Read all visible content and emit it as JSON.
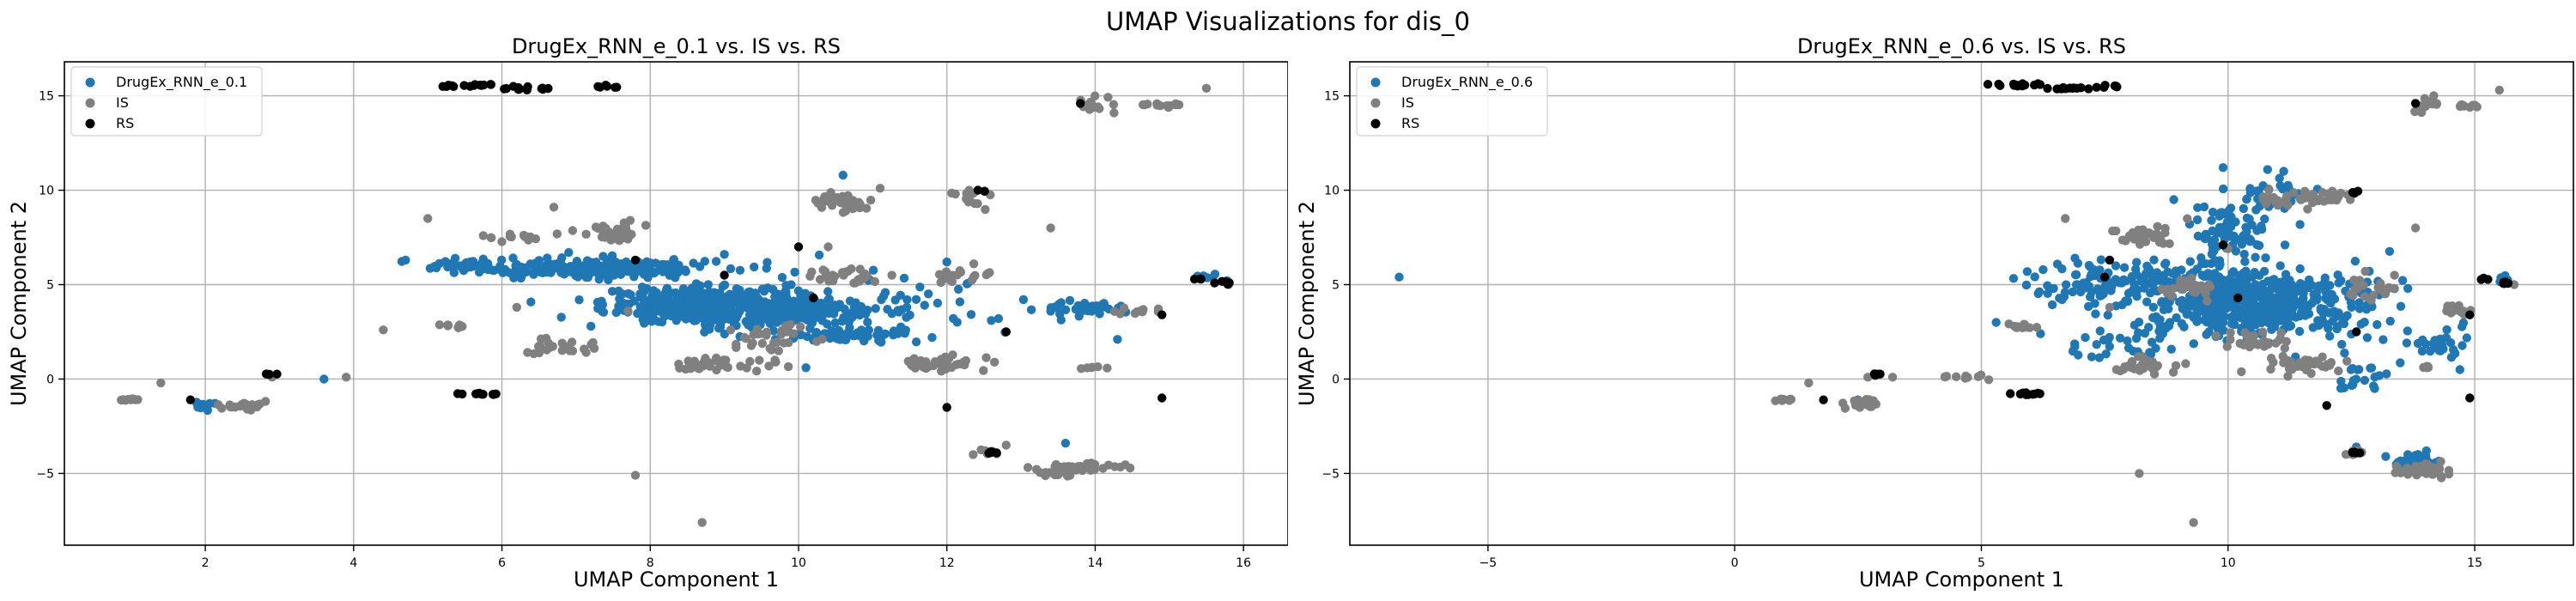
{
  "figure": {
    "suptitle": "UMAP Visualizations for dis_0"
  },
  "colors": {
    "generated": "#1f77b4",
    "IS": "#808080",
    "RS": "#000000",
    "grid": "#b0b0b0"
  },
  "chart_data": [
    {
      "type": "scatter",
      "title": "DrugEx_RNN_e_0.1 vs. IS vs. RS",
      "xlabel": "UMAP Component 1",
      "ylabel": "UMAP Component 2",
      "xlim": [
        0.1,
        16.6
      ],
      "ylim": [
        -8.8,
        16.8
      ],
      "xticks": [
        2,
        4,
        6,
        8,
        10,
        12,
        14,
        16
      ],
      "yticks": [
        -5,
        0,
        5,
        10,
        15
      ],
      "grid": true,
      "legend_position": "top-left",
      "series": [
        {
          "name": "DrugEx_RNN_e_0.1",
          "color": "#1f77b4",
          "clusters": [
            {
              "cx": 8.7,
              "cy": 3.9,
              "rx": 1.2,
              "ry": 0.9,
              "n": 380
            },
            {
              "cx": 7.2,
              "cy": 5.9,
              "rx": 1.6,
              "ry": 0.45,
              "n": 220
            },
            {
              "cx": 9.9,
              "cy": 3.6,
              "rx": 1.0,
              "ry": 0.8,
              "n": 180
            },
            {
              "cx": 10.6,
              "cy": 2.3,
              "rx": 0.8,
              "ry": 0.3,
              "n": 60
            },
            {
              "cx": 13.9,
              "cy": 3.7,
              "rx": 0.5,
              "ry": 0.35,
              "n": 40
            },
            {
              "cx": 11.5,
              "cy": 4.0,
              "rx": 1.4,
              "ry": 1.6,
              "n": 50
            },
            {
              "cx": 5.5,
              "cy": 6.0,
              "rx": 0.6,
              "ry": 0.3,
              "n": 25
            },
            {
              "cx": 2.0,
              "cy": -1.4,
              "rx": 0.15,
              "ry": 0.25,
              "n": 12
            },
            {
              "cx": 15.5,
              "cy": 5.4,
              "rx": 0.15,
              "ry": 0.2,
              "n": 6
            }
          ],
          "points": [
            {
              "x": 4.7,
              "y": 6.3
            },
            {
              "x": 10.6,
              "y": 10.8
            },
            {
              "x": 13.6,
              "y": -3.4
            },
            {
              "x": 12.0,
              "y": 6.2
            },
            {
              "x": 9.0,
              "y": 6.6
            },
            {
              "x": 11.8,
              "y": 2.2
            },
            {
              "x": 14.3,
              "y": 2.1
            },
            {
              "x": 12.6,
              "y": 3.1
            },
            {
              "x": 3.6,
              "y": 0.0
            },
            {
              "x": 10.1,
              "y": 0.6
            },
            {
              "x": 7.2,
              "y": 2.8
            },
            {
              "x": 6.9,
              "y": 6.7
            }
          ]
        },
        {
          "name": "IS",
          "color": "#808080",
          "clusters": [
            {
              "cx": 13.7,
              "cy": -4.8,
              "rx": 0.55,
              "ry": 0.3,
              "n": 45
            },
            {
              "cx": 14.0,
              "cy": 14.6,
              "rx": 0.25,
              "ry": 0.4,
              "n": 18
            },
            {
              "cx": 14.9,
              "cy": 14.5,
              "rx": 0.3,
              "ry": 0.1,
              "n": 12
            },
            {
              "cx": 10.6,
              "cy": 9.4,
              "rx": 0.5,
              "ry": 0.5,
              "n": 35
            },
            {
              "cx": 11.9,
              "cy": 0.8,
              "rx": 0.5,
              "ry": 0.3,
              "n": 40
            },
            {
              "cx": 2.5,
              "cy": -1.4,
              "rx": 0.3,
              "ry": 0.2,
              "n": 22
            },
            {
              "cx": 1.0,
              "cy": -1.1,
              "rx": 0.12,
              "ry": 0.06,
              "n": 10
            },
            {
              "cx": 8.9,
              "cy": 0.8,
              "rx": 0.6,
              "ry": 0.35,
              "n": 40
            },
            {
              "cx": 7.5,
              "cy": 7.8,
              "rx": 0.4,
              "ry": 0.5,
              "n": 30
            },
            {
              "cx": 12.3,
              "cy": 9.6,
              "rx": 0.25,
              "ry": 0.4,
              "n": 15
            },
            {
              "cx": 12.5,
              "cy": -3.9,
              "rx": 0.2,
              "ry": 0.15,
              "n": 10
            },
            {
              "cx": 10.5,
              "cy": 5.4,
              "rx": 0.6,
              "ry": 0.35,
              "n": 30
            },
            {
              "cx": 6.8,
              "cy": 1.6,
              "rx": 0.6,
              "ry": 0.5,
              "n": 25
            },
            {
              "cx": 12.2,
              "cy": 5.5,
              "rx": 0.4,
              "ry": 0.5,
              "n": 18
            },
            {
              "cx": 14.0,
              "cy": 0.6,
              "rx": 0.2,
              "ry": 0.1,
              "n": 6
            },
            {
              "cx": 6.2,
              "cy": 7.5,
              "rx": 0.4,
              "ry": 0.25,
              "n": 15
            },
            {
              "cx": 9.7,
              "cy": 2.2,
              "rx": 0.8,
              "ry": 0.6,
              "n": 30
            },
            {
              "cx": 14.6,
              "cy": 3.6,
              "rx": 0.3,
              "ry": 0.2,
              "n": 10
            },
            {
              "cx": 5.3,
              "cy": 2.8,
              "rx": 0.2,
              "ry": 0.15,
              "n": 8
            }
          ],
          "points": [
            {
              "x": 8.7,
              "y": -7.6
            },
            {
              "x": 7.8,
              "y": -5.1
            },
            {
              "x": 13.4,
              "y": 8.0
            },
            {
              "x": 15.8,
              "y": 5.0
            },
            {
              "x": 4.4,
              "y": 2.6
            },
            {
              "x": 3.9,
              "y": 0.1
            },
            {
              "x": 2.9,
              "y": 0.1
            },
            {
              "x": 1.4,
              "y": -0.2
            },
            {
              "x": 5.0,
              "y": 8.5
            },
            {
              "x": 11.1,
              "y": 10.1
            },
            {
              "x": 12.8,
              "y": -3.5
            },
            {
              "x": 10.4,
              "y": 7.0
            },
            {
              "x": 6.7,
              "y": 9.1
            },
            {
              "x": 15.5,
              "y": 15.4
            },
            {
              "x": 7.7,
              "y": 3.6
            },
            {
              "x": 6.2,
              "y": 3.8
            }
          ]
        },
        {
          "name": "RS",
          "color": "#000000",
          "clusters": [
            {
              "cx": 5.5,
              "cy": 15.55,
              "rx": 0.35,
              "ry": 0.08,
              "n": 14
            },
            {
              "cx": 6.4,
              "cy": 15.4,
              "rx": 0.35,
              "ry": 0.08,
              "n": 12
            },
            {
              "cx": 7.4,
              "cy": 15.5,
              "rx": 0.2,
              "ry": 0.08,
              "n": 6
            },
            {
              "cx": 5.6,
              "cy": -0.8,
              "rx": 0.35,
              "ry": 0.06,
              "n": 10
            },
            {
              "cx": 15.7,
              "cy": 5.1,
              "rx": 0.12,
              "ry": 0.1,
              "n": 6
            },
            {
              "cx": 12.6,
              "cy": -3.9,
              "rx": 0.1,
              "ry": 0.05,
              "n": 4
            },
            {
              "cx": 2.9,
              "cy": 0.25,
              "rx": 0.1,
              "ry": 0.06,
              "n": 4
            },
            {
              "cx": 12.5,
              "cy": 9.9,
              "rx": 0.08,
              "ry": 0.15,
              "n": 3
            },
            {
              "cx": 15.4,
              "cy": 5.3,
              "rx": 0.1,
              "ry": 0.05,
              "n": 3
            }
          ],
          "points": [
            {
              "x": 1.8,
              "y": -1.1
            },
            {
              "x": 12.0,
              "y": -1.5
            },
            {
              "x": 14.9,
              "y": -1.0
            },
            {
              "x": 7.8,
              "y": 6.3
            },
            {
              "x": 10.0,
              "y": 7.0
            },
            {
              "x": 12.8,
              "y": 2.5
            },
            {
              "x": 13.8,
              "y": 14.6
            },
            {
              "x": 10.2,
              "y": 4.3
            },
            {
              "x": 14.9,
              "y": 3.4
            },
            {
              "x": 9.0,
              "y": 5.5
            }
          ]
        }
      ]
    },
    {
      "type": "scatter",
      "title": "DrugEx_RNN_e_0.6 vs. IS vs. RS",
      "xlabel": "UMAP Component 1",
      "ylabel": "UMAP Component 2",
      "xlim": [
        -7.8,
        17.0
      ],
      "ylim": [
        -8.8,
        16.8
      ],
      "xticks": [
        -5,
        0,
        5,
        10,
        15
      ],
      "yticks": [
        -5,
        0,
        5,
        10,
        15
      ],
      "grid": true,
      "legend_position": "top-left",
      "series": [
        {
          "name": "DrugEx_RNN_e_0.6",
          "color": "#1f77b4",
          "clusters": [
            {
              "cx": 10.2,
              "cy": 3.9,
              "rx": 1.7,
              "ry": 1.4,
              "n": 480
            },
            {
              "cx": 10.0,
              "cy": 7.5,
              "rx": 0.7,
              "ry": 2.0,
              "n": 90
            },
            {
              "cx": 8.2,
              "cy": 5.3,
              "rx": 1.6,
              "ry": 0.8,
              "n": 90
            },
            {
              "cx": 12.4,
              "cy": 4.0,
              "rx": 1.0,
              "ry": 2.0,
              "n": 70
            },
            {
              "cx": 13.8,
              "cy": -4.4,
              "rx": 0.45,
              "ry": 0.4,
              "n": 40
            },
            {
              "cx": 14.3,
              "cy": 2.0,
              "rx": 0.5,
              "ry": 1.0,
              "n": 30
            },
            {
              "cx": 6.8,
              "cy": 5.0,
              "rx": 1.0,
              "ry": 1.0,
              "n": 35
            },
            {
              "cx": 11.0,
              "cy": 9.8,
              "rx": 0.8,
              "ry": 1.0,
              "n": 30
            },
            {
              "cx": 7.8,
              "cy": 1.8,
              "rx": 1.2,
              "ry": 0.6,
              "n": 30
            },
            {
              "cx": 12.8,
              "cy": 0.3,
              "rx": 0.6,
              "ry": 0.6,
              "n": 20
            },
            {
              "cx": 15.6,
              "cy": 5.3,
              "rx": 0.15,
              "ry": 0.2,
              "n": 6
            }
          ],
          "points": [
            {
              "x": -6.8,
              "y": 5.4
            },
            {
              "x": 12.6,
              "y": -3.6
            },
            {
              "x": 8.9,
              "y": 9.5
            },
            {
              "x": 6.2,
              "y": 2.4
            },
            {
              "x": 14.7,
              "y": 0.5
            },
            {
              "x": 5.3,
              "y": 3.0
            },
            {
              "x": 2.5,
              "y": -1.1
            },
            {
              "x": 9.9,
              "y": 11.2
            },
            {
              "x": 10.8,
              "y": 11.1
            }
          ]
        },
        {
          "name": "IS",
          "color": "#808080",
          "clusters": [
            {
              "cx": 13.9,
              "cy": -4.8,
              "rx": 0.5,
              "ry": 0.35,
              "n": 45
            },
            {
              "cx": 14.0,
              "cy": 14.6,
              "rx": 0.2,
              "ry": 0.4,
              "n": 18
            },
            {
              "cx": 14.9,
              "cy": 14.5,
              "rx": 0.3,
              "ry": 0.1,
              "n": 12
            },
            {
              "cx": 11.2,
              "cy": 9.5,
              "rx": 0.6,
              "ry": 0.4,
              "n": 35
            },
            {
              "cx": 12.2,
              "cy": 9.6,
              "rx": 0.3,
              "ry": 0.4,
              "n": 15
            },
            {
              "cx": 11.6,
              "cy": 0.8,
              "rx": 0.8,
              "ry": 0.35,
              "n": 40
            },
            {
              "cx": 2.6,
              "cy": -1.3,
              "rx": 0.3,
              "ry": 0.25,
              "n": 22
            },
            {
              "cx": 1.0,
              "cy": -1.1,
              "rx": 0.12,
              "ry": 0.06,
              "n": 10
            },
            {
              "cx": 8.3,
              "cy": 7.6,
              "rx": 0.6,
              "ry": 0.5,
              "n": 30
            },
            {
              "cx": 9.2,
              "cy": 4.8,
              "rx": 0.7,
              "ry": 0.5,
              "n": 30
            },
            {
              "cx": 8.2,
              "cy": 0.7,
              "rx": 0.6,
              "ry": 0.35,
              "n": 35
            },
            {
              "cx": 12.6,
              "cy": -3.9,
              "rx": 0.2,
              "ry": 0.15,
              "n": 10
            },
            {
              "cx": 14.6,
              "cy": 3.6,
              "rx": 0.3,
              "ry": 0.2,
              "n": 12
            },
            {
              "cx": 12.8,
              "cy": 4.8,
              "rx": 0.4,
              "ry": 0.6,
              "n": 20
            },
            {
              "cx": 5.8,
              "cy": 2.8,
              "rx": 0.3,
              "ry": 0.2,
              "n": 10
            },
            {
              "cx": 10.6,
              "cy": 2.0,
              "rx": 0.7,
              "ry": 0.5,
              "n": 30
            },
            {
              "cx": 14.0,
              "cy": 0.6,
              "rx": 0.2,
              "ry": 0.1,
              "n": 6
            },
            {
              "cx": 4.5,
              "cy": 0.1,
              "rx": 0.5,
              "ry": 0.1,
              "n": 10
            }
          ],
          "points": [
            {
              "x": 9.3,
              "y": -7.6
            },
            {
              "x": 8.2,
              "y": -5.0
            },
            {
              "x": 13.8,
              "y": 8.0
            },
            {
              "x": 15.8,
              "y": 5.0
            },
            {
              "x": 6.7,
              "y": 8.5
            },
            {
              "x": 2.7,
              "y": 0.1
            },
            {
              "x": 1.5,
              "y": -0.2
            },
            {
              "x": 15.5,
              "y": 15.3
            },
            {
              "x": 10.0,
              "y": 6.9
            },
            {
              "x": 7.6,
              "y": 3.8
            },
            {
              "x": 3.2,
              "y": 0.1
            }
          ]
        },
        {
          "name": "RS",
          "color": "#000000",
          "clusters": [
            {
              "cx": 5.8,
              "cy": 15.55,
              "rx": 0.5,
              "ry": 0.08,
              "n": 14
            },
            {
              "cx": 6.8,
              "cy": 15.4,
              "rx": 0.4,
              "ry": 0.08,
              "n": 12
            },
            {
              "cx": 7.6,
              "cy": 15.5,
              "rx": 0.25,
              "ry": 0.08,
              "n": 6
            },
            {
              "cx": 5.9,
              "cy": -0.8,
              "rx": 0.4,
              "ry": 0.06,
              "n": 10
            },
            {
              "cx": 15.6,
              "cy": 5.1,
              "rx": 0.12,
              "ry": 0.1,
              "n": 6
            },
            {
              "cx": 12.6,
              "cy": -3.9,
              "rx": 0.1,
              "ry": 0.05,
              "n": 4
            },
            {
              "cx": 2.9,
              "cy": 0.25,
              "rx": 0.1,
              "ry": 0.06,
              "n": 4
            },
            {
              "cx": 12.6,
              "cy": 9.9,
              "rx": 0.08,
              "ry": 0.15,
              "n": 3
            },
            {
              "cx": 15.2,
              "cy": 5.3,
              "rx": 0.1,
              "ry": 0.05,
              "n": 3
            }
          ],
          "points": [
            {
              "x": 1.8,
              "y": -1.1
            },
            {
              "x": 12.0,
              "y": -1.4
            },
            {
              "x": 14.9,
              "y": -1.0
            },
            {
              "x": 7.6,
              "y": 6.3
            },
            {
              "x": 9.9,
              "y": 7.1
            },
            {
              "x": 12.6,
              "y": 2.5
            },
            {
              "x": 13.8,
              "y": 14.6
            },
            {
              "x": 10.2,
              "y": 4.3
            },
            {
              "x": 14.9,
              "y": 3.4
            },
            {
              "x": 7.5,
              "y": 5.4
            }
          ]
        }
      ]
    }
  ]
}
